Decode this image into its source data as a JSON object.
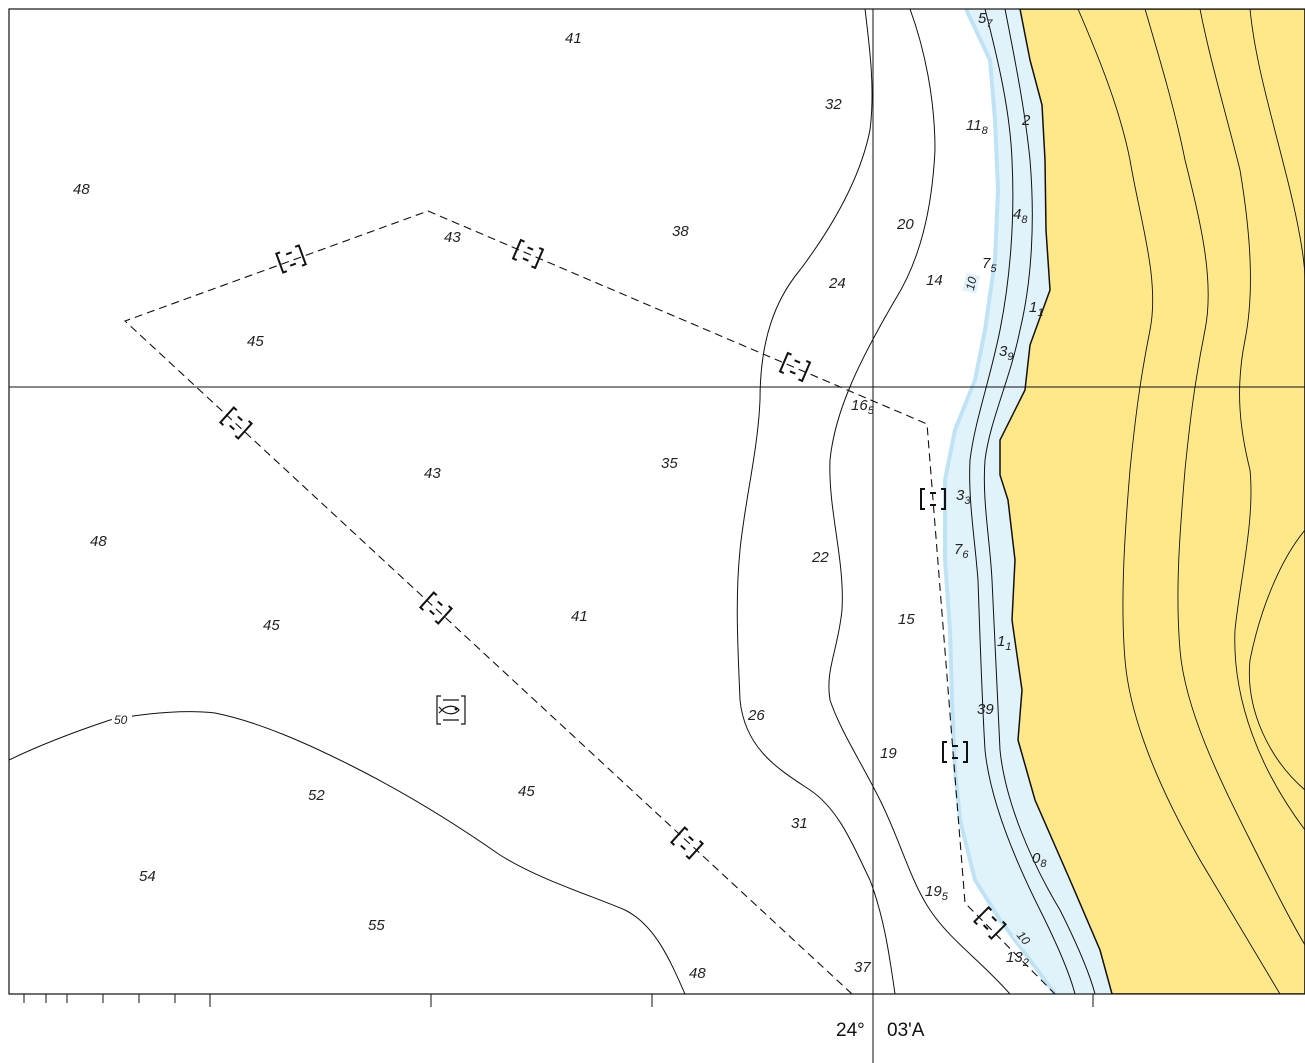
{
  "map": {
    "longitude_label": {
      "degrees": "24°",
      "minutes": "03'A"
    },
    "colors": {
      "land": "#FFE88A",
      "shallow_water": "#E0F2FA",
      "shallow_edge": "#BFE3F5",
      "water": "#FFFFFF",
      "line": "#111111"
    },
    "contour_labels": [
      "50",
      "10",
      "10"
    ],
    "soundings": [
      {
        "id": "s41a",
        "main": "41",
        "sub": ""
      },
      {
        "id": "s32",
        "main": "32",
        "sub": ""
      },
      {
        "id": "s57",
        "main": "5",
        "sub": "7"
      },
      {
        "id": "s118",
        "main": "11",
        "sub": "8"
      },
      {
        "id": "s2",
        "main": "2",
        "sub": ""
      },
      {
        "id": "s48a",
        "main": "48",
        "sub": ""
      },
      {
        "id": "s43a",
        "main": "43",
        "sub": ""
      },
      {
        "id": "s38",
        "main": "38",
        "sub": ""
      },
      {
        "id": "s20",
        "main": "20",
        "sub": ""
      },
      {
        "id": "s48b",
        "main": "4",
        "sub": "8"
      },
      {
        "id": "s75",
        "main": "7",
        "sub": "5"
      },
      {
        "id": "s24",
        "main": "24",
        "sub": ""
      },
      {
        "id": "s14",
        "main": "14",
        "sub": ""
      },
      {
        "id": "s11a",
        "main": "1",
        "sub": "1"
      },
      {
        "id": "s45a",
        "main": "45",
        "sub": ""
      },
      {
        "id": "s39a",
        "main": "3",
        "sub": "9"
      },
      {
        "id": "s165",
        "main": "16",
        "sub": "5"
      },
      {
        "id": "s43b",
        "main": "43",
        "sub": ""
      },
      {
        "id": "s35",
        "main": "35",
        "sub": ""
      },
      {
        "id": "s33",
        "main": "3",
        "sub": "3"
      },
      {
        "id": "s48c",
        "main": "48",
        "sub": ""
      },
      {
        "id": "s76",
        "main": "7",
        "sub": "6"
      },
      {
        "id": "s22",
        "main": "22",
        "sub": ""
      },
      {
        "id": "s45b",
        "main": "45",
        "sub": ""
      },
      {
        "id": "s41b",
        "main": "41",
        "sub": ""
      },
      {
        "id": "s15",
        "main": "15",
        "sub": ""
      },
      {
        "id": "s11b",
        "main": "1",
        "sub": "1"
      },
      {
        "id": "s26",
        "main": "26",
        "sub": ""
      },
      {
        "id": "s39b",
        "main": "39",
        "sub": ""
      },
      {
        "id": "s19",
        "main": "19",
        "sub": ""
      },
      {
        "id": "s52",
        "main": "52",
        "sub": ""
      },
      {
        "id": "s45c",
        "main": "45",
        "sub": ""
      },
      {
        "id": "s31",
        "main": "31",
        "sub": ""
      },
      {
        "id": "s08",
        "main": "0",
        "sub": "8"
      },
      {
        "id": "s54",
        "main": "54",
        "sub": ""
      },
      {
        "id": "s195",
        "main": "19",
        "sub": "5"
      },
      {
        "id": "s55",
        "main": "55",
        "sub": ""
      },
      {
        "id": "s132",
        "main": "13",
        "sub": "2"
      },
      {
        "id": "s37",
        "main": "37",
        "sub": ""
      },
      {
        "id": "s48d",
        "main": "48",
        "sub": ""
      }
    ],
    "fishing_area_symbol": "fish-haven-icon"
  }
}
